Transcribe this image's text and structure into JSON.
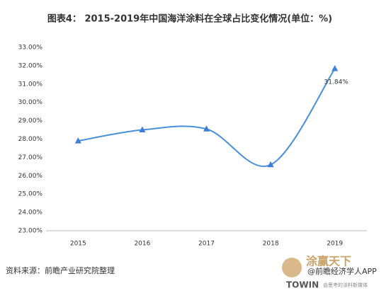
{
  "chart_data": {
    "type": "line",
    "title": "图表4： 2015-2019年中国海洋涂料在全球占比变化情况(单位：%)",
    "categories": [
      "2015",
      "2016",
      "2017",
      "2018",
      "2019"
    ],
    "series": [
      {
        "color": "#4a8fdc",
        "values": [
          27.9,
          28.5,
          28.55,
          26.6,
          31.84
        ],
        "value_labels": [
          null,
          null,
          null,
          null,
          "31.84%"
        ]
      }
    ],
    "ylim": [
      23,
      33
    ],
    "yticks": [
      {
        "value": 23,
        "label": "23.00%"
      },
      {
        "value": 24,
        "label": "24.00%"
      },
      {
        "value": 25,
        "label": "25.00%"
      },
      {
        "value": 26,
        "label": "26.00%"
      },
      {
        "value": 27,
        "label": "27.00%"
      },
      {
        "value": 28,
        "label": "28.00%"
      },
      {
        "value": 29,
        "label": "29.00%"
      },
      {
        "value": 30,
        "label": "30.00%"
      },
      {
        "value": 31,
        "label": "31.00%"
      },
      {
        "value": 32,
        "label": "32.00%"
      },
      {
        "value": 33,
        "label": "33.00%"
      }
    ],
    "grid": false,
    "source": "资料来源：前瞻产业研究院整理",
    "watermarks": [
      "涂赢天下",
      "@前瞻经济学人APP",
      "TOWIN",
      "会思考的涂料新媒体"
    ]
  }
}
